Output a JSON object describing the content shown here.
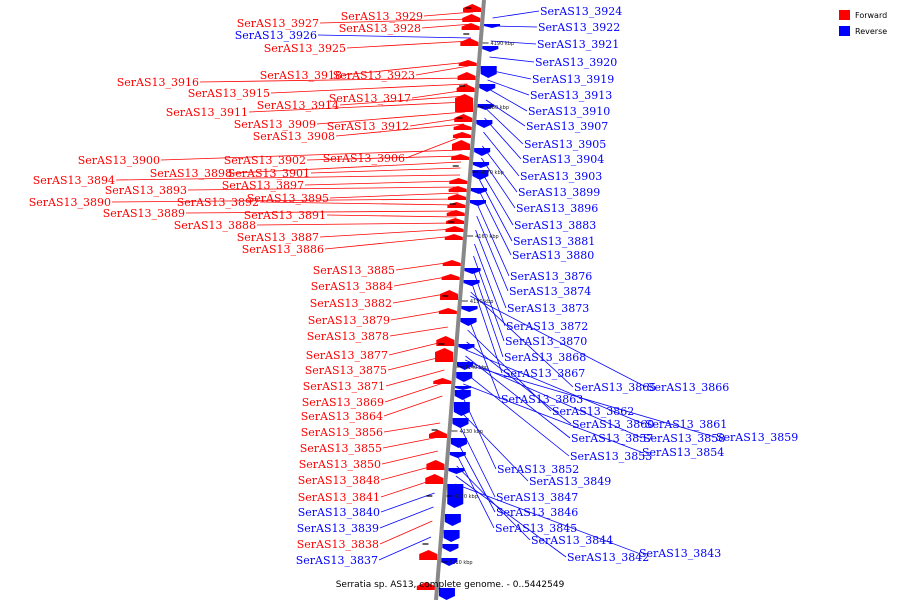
{
  "caption": "Serratia sp. AS13, complete genome. - 0..5442549",
  "legend": {
    "forward": {
      "label": "Forward",
      "color": "#ff0000"
    },
    "reverse": {
      "label": "Reverse",
      "color": "#0000ff"
    }
  },
  "scale_ticks": [
    "4190 kbp",
    "4180 kbp",
    "4170 kbp",
    "4160 kbp",
    "4150 kbp",
    "4140 kbp",
    "4130 kbp",
    "4120 kbp",
    "4110 kbp"
  ],
  "left_labels": [
    {
      "text": "SerAS13_3929",
      "strand": "forward"
    },
    {
      "text": "SerAS13_3927",
      "strand": "forward"
    },
    {
      "text": "SerAS13_3928",
      "strand": "forward"
    },
    {
      "text": "SerAS13_3926",
      "strand": "reverse"
    },
    {
      "text": "SerAS13_3925",
      "strand": "forward"
    },
    {
      "text": "SerAS13_3918",
      "strand": "forward"
    },
    {
      "text": "SerAS13_3923",
      "strand": "forward"
    },
    {
      "text": "SerAS13_3916",
      "strand": "forward"
    },
    {
      "text": "SerAS13_3915",
      "strand": "forward"
    },
    {
      "text": "SerAS13_3917",
      "strand": "forward"
    },
    {
      "text": "SerAS13_3914",
      "strand": "forward"
    },
    {
      "text": "SerAS13_3911",
      "strand": "forward"
    },
    {
      "text": "SerAS13_3909",
      "strand": "forward"
    },
    {
      "text": "SerAS13_3912",
      "strand": "forward"
    },
    {
      "text": "SerAS13_3908",
      "strand": "forward"
    },
    {
      "text": "SerAS13_3906",
      "strand": "forward"
    },
    {
      "text": "SerAS13_3900",
      "strand": "forward"
    },
    {
      "text": "SerAS13_3902",
      "strand": "forward"
    },
    {
      "text": "SerAS13_3898",
      "strand": "forward"
    },
    {
      "text": "SerAS13_3901",
      "strand": "forward"
    },
    {
      "text": "SerAS13_3894",
      "strand": "forward"
    },
    {
      "text": "SerAS13_3897",
      "strand": "forward"
    },
    {
      "text": "SerAS13_3893",
      "strand": "forward"
    },
    {
      "text": "SerAS13_3895",
      "strand": "forward"
    },
    {
      "text": "SerAS13_3890",
      "strand": "forward"
    },
    {
      "text": "SerAS13_3892",
      "strand": "forward"
    },
    {
      "text": "SerAS13_3889",
      "strand": "forward"
    },
    {
      "text": "SerAS13_3891",
      "strand": "forward"
    },
    {
      "text": "SerAS13_3888",
      "strand": "forward"
    },
    {
      "text": "SerAS13_3887",
      "strand": "forward"
    },
    {
      "text": "SerAS13_3886",
      "strand": "forward"
    },
    {
      "text": "SerAS13_3885",
      "strand": "forward"
    },
    {
      "text": "SerAS13_3884",
      "strand": "forward"
    },
    {
      "text": "SerAS13_3882",
      "strand": "forward"
    },
    {
      "text": "SerAS13_3879",
      "strand": "forward"
    },
    {
      "text": "SerAS13_3878",
      "strand": "forward"
    },
    {
      "text": "SerAS13_3877",
      "strand": "forward"
    },
    {
      "text": "SerAS13_3875",
      "strand": "forward"
    },
    {
      "text": "SerAS13_3871",
      "strand": "forward"
    },
    {
      "text": "SerAS13_3869",
      "strand": "forward"
    },
    {
      "text": "SerAS13_3864",
      "strand": "forward"
    },
    {
      "text": "SerAS13_3856",
      "strand": "forward"
    },
    {
      "text": "SerAS13_3855",
      "strand": "forward"
    },
    {
      "text": "SerAS13_3850",
      "strand": "forward"
    },
    {
      "text": "SerAS13_3848",
      "strand": "forward"
    },
    {
      "text": "SerAS13_3841",
      "strand": "forward"
    },
    {
      "text": "SerAS13_3840",
      "strand": "reverse"
    },
    {
      "text": "SerAS13_3839",
      "strand": "reverse"
    },
    {
      "text": "SerAS13_3838",
      "strand": "forward"
    },
    {
      "text": "SerAS13_3837",
      "strand": "reverse"
    }
  ],
  "right_labels": [
    {
      "text": "SerAS13_3924",
      "strand": "reverse"
    },
    {
      "text": "SerAS13_3922",
      "strand": "reverse"
    },
    {
      "text": "SerAS13_3921",
      "strand": "reverse"
    },
    {
      "text": "SerAS13_3920",
      "strand": "reverse"
    },
    {
      "text": "SerAS13_3919",
      "strand": "reverse"
    },
    {
      "text": "SerAS13_3913",
      "strand": "reverse"
    },
    {
      "text": "SerAS13_3910",
      "strand": "reverse"
    },
    {
      "text": "SerAS13_3907",
      "strand": "reverse"
    },
    {
      "text": "SerAS13_3905",
      "strand": "reverse"
    },
    {
      "text": "SerAS13_3904",
      "strand": "reverse"
    },
    {
      "text": "SerAS13_3903",
      "strand": "reverse"
    },
    {
      "text": "SerAS13_3899",
      "strand": "reverse"
    },
    {
      "text": "SerAS13_3896",
      "strand": "reverse"
    },
    {
      "text": "SerAS13_3883",
      "strand": "reverse"
    },
    {
      "text": "SerAS13_3881",
      "strand": "reverse"
    },
    {
      "text": "SerAS13_3880",
      "strand": "reverse"
    },
    {
      "text": "SerAS13_3876",
      "strand": "reverse"
    },
    {
      "text": "SerAS13_3874",
      "strand": "reverse"
    },
    {
      "text": "SerAS13_3873",
      "strand": "reverse"
    },
    {
      "text": "SerAS13_3872",
      "strand": "reverse"
    },
    {
      "text": "SerAS13_3870",
      "strand": "reverse"
    },
    {
      "text": "SerAS13_3868",
      "strand": "reverse"
    },
    {
      "text": "SerAS13_3867",
      "strand": "reverse"
    },
    {
      "text": "SerAS13_3865",
      "strand": "reverse"
    },
    {
      "text": "SerAS13_3866",
      "strand": "reverse"
    },
    {
      "text": "SerAS13_3863",
      "strand": "reverse"
    },
    {
      "text": "SerAS13_3862",
      "strand": "reverse"
    },
    {
      "text": "SerAS13_3860",
      "strand": "reverse"
    },
    {
      "text": "SerAS13_3861",
      "strand": "reverse"
    },
    {
      "text": "SerAS13_3857",
      "strand": "reverse"
    },
    {
      "text": "SerAS13_3858",
      "strand": "reverse"
    },
    {
      "text": "SerAS13_3859",
      "strand": "reverse"
    },
    {
      "text": "SerAS13_3853",
      "strand": "reverse"
    },
    {
      "text": "SerAS13_3854",
      "strand": "reverse"
    },
    {
      "text": "SerAS13_3852",
      "strand": "reverse"
    },
    {
      "text": "SerAS13_3849",
      "strand": "reverse"
    },
    {
      "text": "SerAS13_3847",
      "strand": "reverse"
    },
    {
      "text": "SerAS13_3846",
      "strand": "reverse"
    },
    {
      "text": "SerAS13_3845",
      "strand": "reverse"
    },
    {
      "text": "SerAS13_3844",
      "strand": "reverse"
    },
    {
      "text": "SerAS13_3842",
      "strand": "reverse"
    },
    {
      "text": "SerAS13_3843",
      "strand": "reverse"
    }
  ]
}
